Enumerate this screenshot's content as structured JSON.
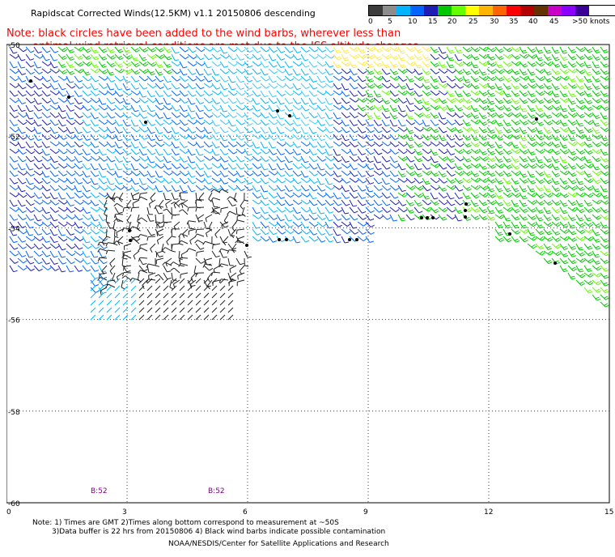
{
  "title": "Rapidscat Corrected Winds(12.5KM) v1.1 20150806 descending",
  "note": {
    "line1": "Note: black circles have been added to the wind barbs, wherever less than",
    "line2": "optimal wind retrieval conditions are met due to the ISS altitude changes."
  },
  "legend": {
    "colors": [
      "#3c3c3c",
      "#8c8c8c",
      "#00b4ff",
      "#0064ff",
      "#1e1eb4",
      "#00c800",
      "#64ff00",
      "#ffff00",
      "#ffb400",
      "#ff6400",
      "#ff0000",
      "#b40000",
      "#643200",
      "#c800c8",
      "#8c00ff",
      "#3c0096"
    ],
    "labels": [
      "0",
      "5",
      "10",
      "15",
      "20",
      "25",
      "30",
      "35",
      "40",
      "45",
      ">50 knots"
    ]
  },
  "axes": {
    "y_ticks": [
      "-50",
      "-52",
      "-54",
      "-56",
      "-58",
      "-60"
    ],
    "x_ticks": [
      "0",
      "3",
      "6",
      "9",
      "12",
      "15"
    ]
  },
  "time_labels": [
    "B:52",
    "B:52"
  ],
  "footnote": {
    "line1": "Note: 1) Times are GMT 2)Times along bottom correspond to measurement at ~50S",
    "line2": "3)Data buffer is 22 hrs from 20150806 4) Black wind barbs indicate possible contamination"
  },
  "credit": "NOAA/NESDIS/Center for Satellite Applications and Research"
}
